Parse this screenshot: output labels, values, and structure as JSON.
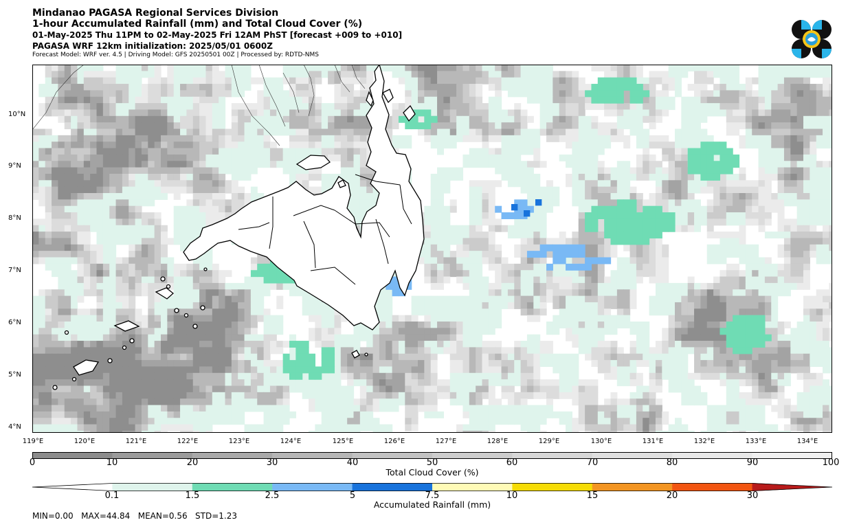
{
  "header": {
    "agency": "Mindanao PAGASA Regional Services Division",
    "title": "1-hour Accumulated Rainfall (mm) and Total Cloud Cover (%)",
    "valid_time": "01-May-2025 Thu 11PM to 02-May-2025 Fri 12AM PhST [forecast +009 to +010]",
    "init": "PAGASA WRF 12km initialization: 2025/05/01 0600Z",
    "credits": "Forecast Model: WRF ver. 4.5 | Driving Model: GFS 20250501 00Z | Processed by: RDTD-NMS"
  },
  "axes": {
    "lat_labels": [
      "10°N",
      "9°N",
      "8°N",
      "7°N",
      "6°N",
      "5°N",
      "4°N"
    ],
    "lon_labels": [
      "119°E",
      "120°E",
      "121°E",
      "122°E",
      "123°E",
      "124°E",
      "125°E",
      "126°E",
      "127°E",
      "128°E",
      "129°E",
      "130°E",
      "131°E",
      "132°E",
      "133°E",
      "134°E"
    ]
  },
  "cloud_colorbar": {
    "title": "Total Cloud Cover (%)",
    "ticks": [
      "0",
      "10",
      "20",
      "30",
      "40",
      "50",
      "60",
      "70",
      "80",
      "90",
      "100"
    ],
    "colors": [
      "#8c8c8c",
      "#9b9b9b",
      "#a9a9a9",
      "#b6b6b6",
      "#c2c2c2",
      "#cdcdcd",
      "#d7d7d7",
      "#e0e0e0",
      "#e8e8e8",
      "#f0f0f0"
    ]
  },
  "rain_colorbar": {
    "title": "Accumulated Rainfall (mm)",
    "ticks": [
      "0.1",
      "1.5",
      "2.5",
      "5",
      "7.5",
      "10",
      "15",
      "20",
      "30"
    ],
    "colors": [
      "#ffffff",
      "#dff4ec",
      "#6fdcb4",
      "#79b9f5",
      "#1873dc",
      "#fffbb7",
      "#f5dc05",
      "#f39522",
      "#f25511",
      "#b81b1b"
    ]
  },
  "stats": "MIN=0.00   MAX=44.84   MEAN=0.56   STD=1.23",
  "colors": {
    "rain_light": "#dff4ec",
    "rain_teal": "#6fdcb4",
    "rain_sky": "#79b9f5",
    "rain_blue": "#1873dc",
    "rain_orange": "#f39522",
    "rain_red": "#f25511",
    "rain_darkred": "#b81b1b",
    "rain_yellow": "#f5dc05",
    "coast": "#000000"
  },
  "logo_icon": "pagasa-logo-icon"
}
